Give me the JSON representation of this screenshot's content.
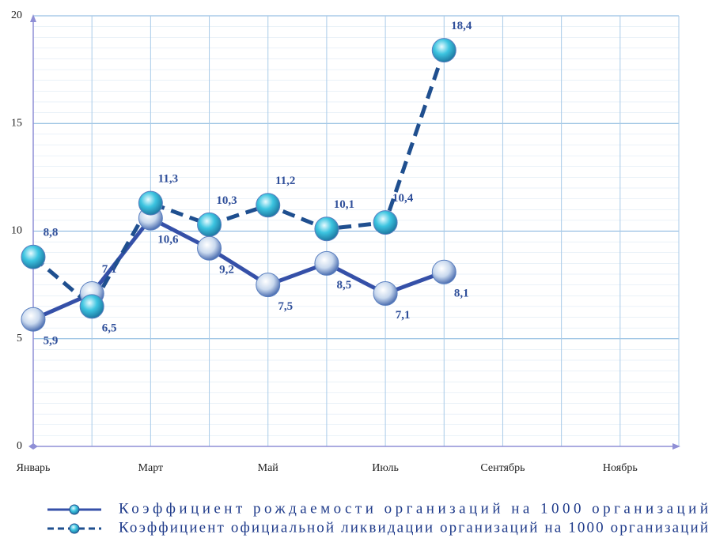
{
  "chart_data": {
    "type": "line",
    "categories": [
      "Январь",
      null,
      "Март",
      null,
      "Май",
      null,
      "Июль",
      null,
      "Сентябрь",
      null,
      "Ноябрь",
      null
    ],
    "series": [
      {
        "name": "Коэффициент рождаемости организаций на 1000 организаций",
        "color": "#3550a8",
        "dashed": false,
        "values": [
          5.9,
          7.1,
          10.6,
          9.2,
          7.5,
          8.5,
          7.1,
          8.1,
          null,
          null,
          null,
          null
        ],
        "value_labels": [
          "5,9",
          "7,1",
          "10,6",
          "9,2",
          "7,5",
          "8,5",
          "7,1",
          "8,1",
          null,
          null,
          null,
          null
        ]
      },
      {
        "name": "Коэффициент официальной ликвидации организаций на 1000 организаций",
        "color": "#1f4f8f",
        "dashed": true,
        "values": [
          8.8,
          6.5,
          11.3,
          10.3,
          11.2,
          10.1,
          10.4,
          18.4,
          null,
          null,
          null,
          null
        ],
        "value_labels": [
          "8,8",
          "6,5",
          "11,3",
          "10,3",
          "11,2",
          "10,1",
          "10,4",
          "18,4",
          null,
          null,
          null,
          null
        ]
      }
    ],
    "ylim": [
      0,
      20
    ],
    "yticks": [
      0,
      5,
      10,
      15,
      20
    ],
    "grid": true
  }
}
